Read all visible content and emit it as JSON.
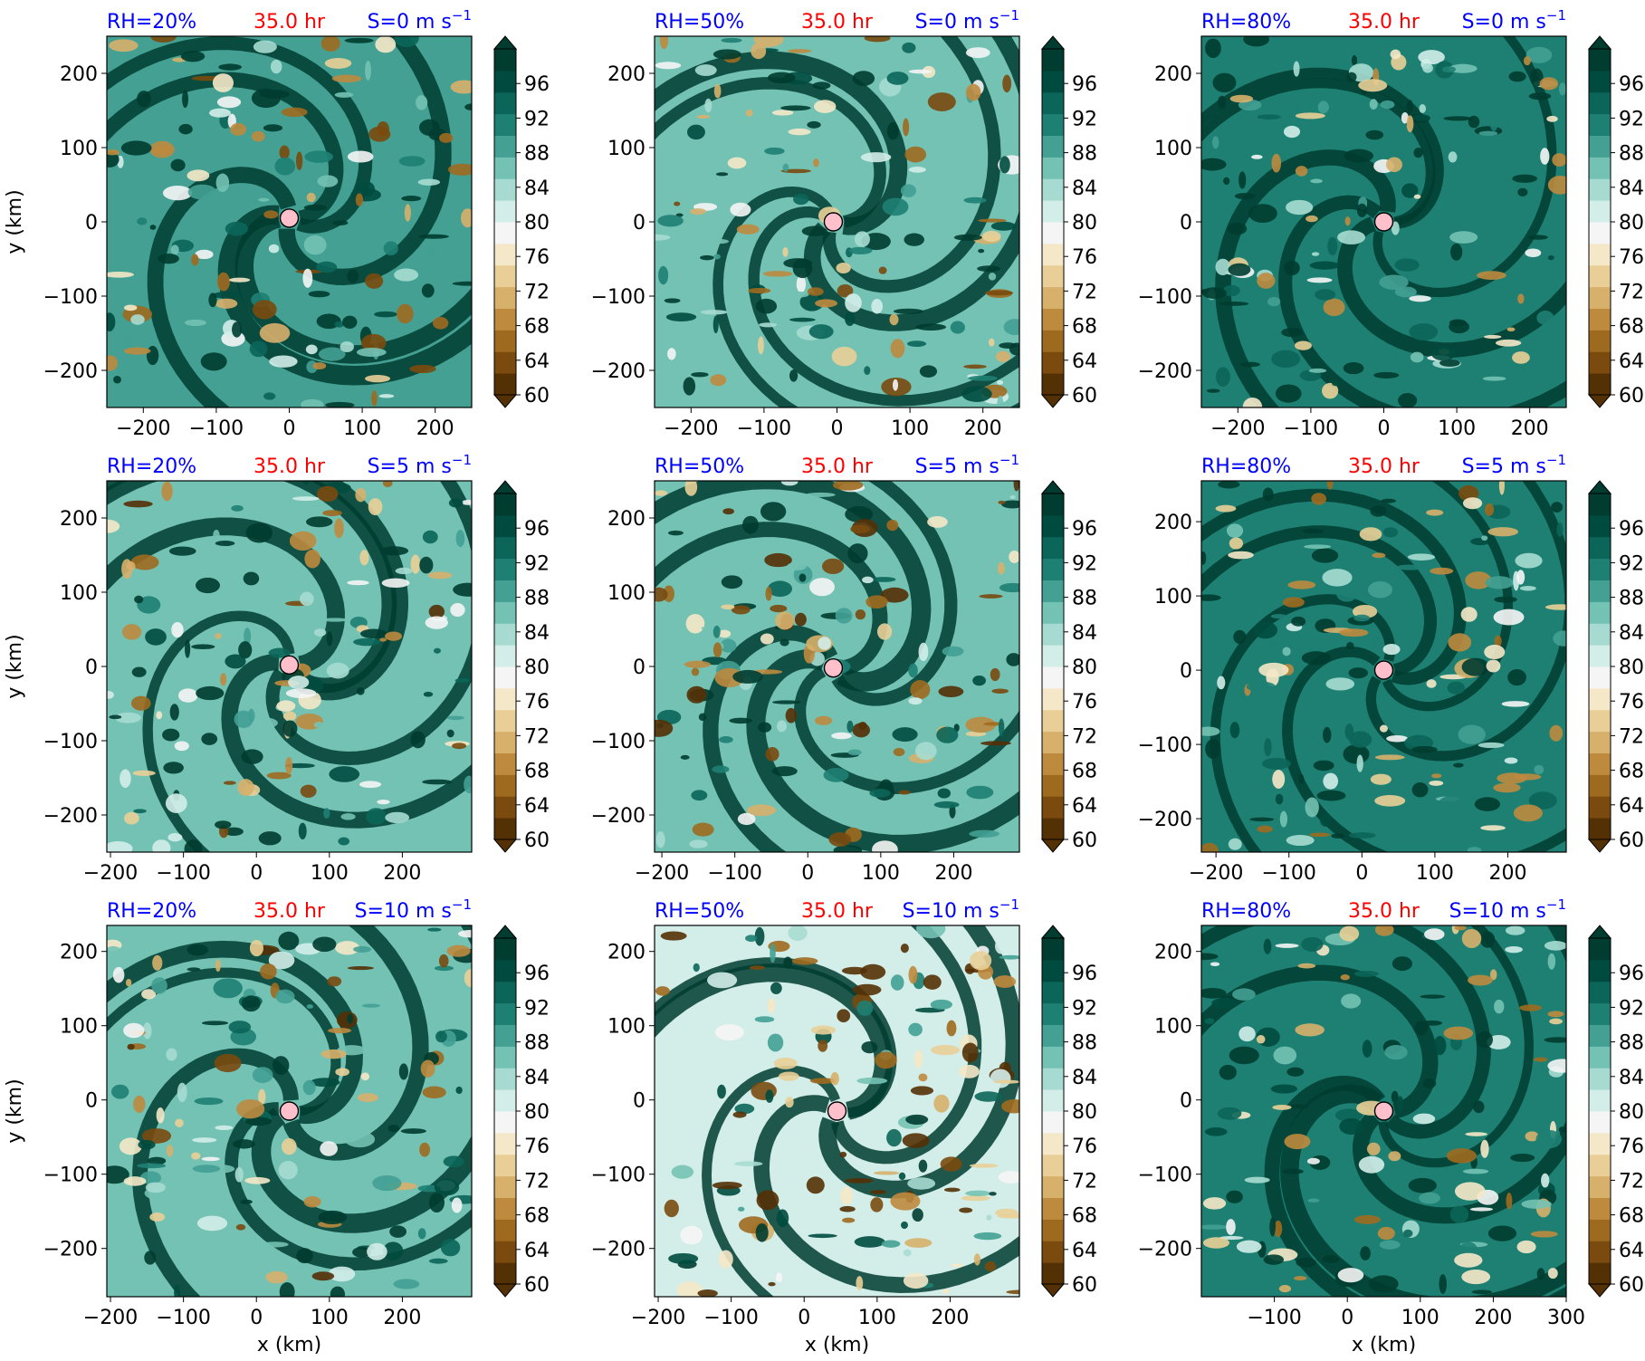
{
  "colors": {
    "title_left": "#0000ff",
    "title_center": "#ff0000",
    "title_right": "#0000ff",
    "colormap": [
      "#543005",
      "#7a4a0e",
      "#9e6a1f",
      "#be8a3e",
      "#d7b06b",
      "#e9cf97",
      "#f5e8c8",
      "#f5f5f5",
      "#d3ede9",
      "#a7dbd1",
      "#74c2b4",
      "#43a093",
      "#1e8073",
      "#0b6559",
      "#004b3f",
      "#003c30"
    ],
    "center_marker": "#ffc0cb"
  },
  "colorbar": {
    "ticks": [
      "60",
      "64",
      "68",
      "72",
      "76",
      "80",
      "84",
      "88",
      "92",
      "96"
    ],
    "range": [
      60,
      100
    ],
    "extend": "both"
  },
  "chart_data": [
    {
      "type": "heatmap",
      "title_left": "RH=20%",
      "title_center": "35.0 hr",
      "title_right": "S=0 m s",
      "title_right_sup": "−1",
      "xticks": [
        "−200",
        "−100",
        "0",
        "100",
        "200"
      ],
      "xtick_values": [
        -200,
        -100,
        0,
        100,
        200
      ],
      "xlim": [
        -250,
        250
      ],
      "yticks": [
        "200",
        "100",
        "0",
        "−100",
        "−200"
      ],
      "ytick_values": [
        200,
        100,
        0,
        -100,
        -200
      ],
      "ylim": [
        -250,
        250
      ],
      "ylabel": "y (km)",
      "xlabel": "",
      "center": [
        0,
        5
      ],
      "mean_rh": 88
    },
    {
      "type": "heatmap",
      "title_left": "RH=50%",
      "title_center": "35.0 hr",
      "title_right": "S=0 m s",
      "title_right_sup": "−1",
      "xticks": [
        "−200",
        "−100",
        "0",
        "100",
        "200"
      ],
      "xtick_values": [
        -200,
        -100,
        0,
        100,
        200
      ],
      "xlim": [
        -250,
        250
      ],
      "yticks": [
        "200",
        "100",
        "0",
        "−100",
        "−200"
      ],
      "ytick_values": [
        200,
        100,
        0,
        -100,
        -200
      ],
      "ylim": [
        -250,
        250
      ],
      "ylabel": "",
      "xlabel": "",
      "center": [
        -5,
        0
      ],
      "mean_rh": 86
    },
    {
      "type": "heatmap",
      "title_left": "RH=80%",
      "title_center": "35.0 hr",
      "title_right": "S=0 m s",
      "title_right_sup": "−1",
      "xticks": [
        "−200",
        "−100",
        "0",
        "100",
        "200"
      ],
      "xtick_values": [
        -200,
        -100,
        0,
        100,
        200
      ],
      "xlim": [
        -250,
        250
      ],
      "yticks": [
        "200",
        "100",
        "0",
        "−100",
        "−200"
      ],
      "ytick_values": [
        200,
        100,
        0,
        -100,
        -200
      ],
      "ylim": [
        -250,
        250
      ],
      "ylabel": "",
      "xlabel": "",
      "center": [
        0,
        0
      ],
      "mean_rh": 92
    },
    {
      "type": "heatmap",
      "title_left": "RH=20%",
      "title_center": "35.0 hr",
      "title_right": "S=5 m s",
      "title_right_sup": "−1",
      "xticks": [
        "−200",
        "−100",
        "0",
        "100",
        "200"
      ],
      "xtick_values": [
        -200,
        -100,
        0,
        100,
        200
      ],
      "xlim": [
        -205,
        295
      ],
      "yticks": [
        "200",
        "100",
        "0",
        "−100",
        "−200"
      ],
      "ytick_values": [
        200,
        100,
        0,
        -100,
        -200
      ],
      "ylim": [
        -250,
        250
      ],
      "ylabel": "y (km)",
      "xlabel": "",
      "center": [
        45,
        2
      ],
      "mean_rh": 87
    },
    {
      "type": "heatmap",
      "title_left": "RH=50%",
      "title_center": "35.0 hr",
      "title_right": "S=5 m s",
      "title_right_sup": "−1",
      "xticks": [
        "−200",
        "−100",
        "0",
        "100",
        "200"
      ],
      "xtick_values": [
        -200,
        -100,
        0,
        100,
        200
      ],
      "xlim": [
        -210,
        290
      ],
      "yticks": [
        "200",
        "100",
        "0",
        "−100",
        "−200"
      ],
      "ytick_values": [
        200,
        100,
        0,
        -100,
        -200
      ],
      "ylim": [
        -250,
        250
      ],
      "ylabel": "",
      "xlabel": "",
      "center": [
        35,
        -2
      ],
      "mean_rh": 85
    },
    {
      "type": "heatmap",
      "title_left": "RH=80%",
      "title_center": "35.0 hr",
      "title_right": "S=5 m s",
      "title_right_sup": "−1",
      "xticks": [
        "−200",
        "−100",
        "0",
        "100",
        "200"
      ],
      "xtick_values": [
        -200,
        -100,
        0,
        100,
        200
      ],
      "xlim": [
        -220,
        280
      ],
      "yticks": [
        "200",
        "100",
        "0",
        "−100",
        "−200"
      ],
      "ytick_values": [
        200,
        100,
        0,
        -100,
        -200
      ],
      "ylim": [
        -245,
        255
      ],
      "ylabel": "",
      "xlabel": "",
      "center": [
        30,
        0
      ],
      "mean_rh": 90
    },
    {
      "type": "heatmap",
      "title_left": "RH=20%",
      "title_center": "35.0 hr",
      "title_right": "S=10 m s",
      "title_right_sup": "−1",
      "xticks": [
        "−200",
        "−100",
        "0",
        "100",
        "200"
      ],
      "xtick_values": [
        -200,
        -100,
        0,
        100,
        200
      ],
      "xlim": [
        -205,
        295
      ],
      "yticks": [
        "200",
        "100",
        "0",
        "−100",
        "−200"
      ],
      "ytick_values": [
        200,
        100,
        0,
        -100,
        -200
      ],
      "ylim": [
        -265,
        235
      ],
      "ylabel": "y (km)",
      "xlabel": "x (km)",
      "center": [
        45,
        -15
      ],
      "mean_rh": 85
    },
    {
      "type": "heatmap",
      "title_left": "RH=50%",
      "title_center": "35.0 hr",
      "title_right": "S=10 m s",
      "title_right_sup": "−1",
      "xticks": [
        "−200",
        "−100",
        "0",
        "100",
        "200"
      ],
      "xtick_values": [
        -200,
        -100,
        0,
        100,
        200
      ],
      "xlim": [
        -205,
        295
      ],
      "yticks": [
        "200",
        "100",
        "0",
        "−100",
        "−200"
      ],
      "ytick_values": [
        200,
        100,
        0,
        -100,
        -200
      ],
      "ylim": [
        -265,
        235
      ],
      "ylabel": "",
      "xlabel": "x (km)",
      "center": [
        45,
        -15
      ],
      "mean_rh": 80
    },
    {
      "type": "heatmap",
      "title_left": "RH=80%",
      "title_center": "35.0 hr",
      "title_right": "S=10 m s",
      "title_right_sup": "−1",
      "xticks": [
        "−100",
        "0",
        "100",
        "200",
        "300"
      ],
      "xtick_values": [
        -100,
        0,
        100,
        200,
        300
      ],
      "xlim": [
        -200,
        300
      ],
      "yticks": [
        "200",
        "100",
        "0",
        "−100",
        "−200"
      ],
      "ytick_values": [
        200,
        100,
        0,
        -100,
        -200
      ],
      "ylim": [
        -265,
        235
      ],
      "ylabel": "",
      "xlabel": "x (km)",
      "center": [
        50,
        -15
      ],
      "mean_rh": 90
    }
  ]
}
